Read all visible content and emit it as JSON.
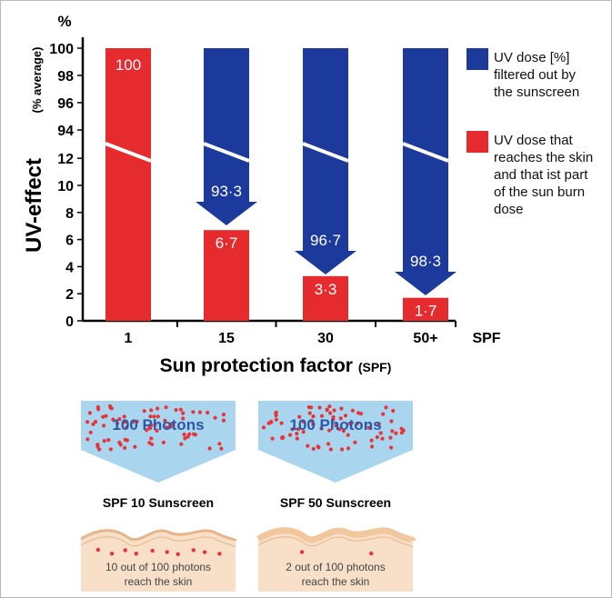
{
  "chart_data": {
    "type": "bar",
    "title": "",
    "xlabel": "Sun protection factor",
    "xlabel_suffix": "(SPF)",
    "ylabel": "UV-effect",
    "ylabel_suffix": "(% average)",
    "y_unit": "%",
    "x_unit": "SPF",
    "categories": [
      "1",
      "15",
      "30",
      "50+"
    ],
    "y_ticks_lower": [
      "0",
      "2",
      "4",
      "6",
      "8",
      "10",
      "12"
    ],
    "y_ticks_upper": [
      "94",
      "96",
      "98",
      "100"
    ],
    "axis_break": true,
    "ylim": [
      0,
      100
    ],
    "series": [
      {
        "name": "UV dose [%] filtered out by the sunscreen",
        "color": "#1c3a9b",
        "values": [
          0,
          93.3,
          96.7,
          98.3
        ],
        "labels": [
          "",
          "93·3",
          "96·7",
          "98·3"
        ]
      },
      {
        "name": "UV dose that reaches the skin and that ist part of the sun burn dose",
        "color": "#e52b2e",
        "values": [
          100,
          6.7,
          3.3,
          1.7
        ],
        "labels": [
          "100",
          "6·7",
          "3·3",
          "1·7"
        ]
      }
    ],
    "legend": {
      "position": "right",
      "items": [
        {
          "lines": [
            "UV dose [%]",
            "filtered out by",
            "the sunscreen"
          ],
          "color": "#1c3a9b"
        },
        {
          "lines": [
            "UV dose that",
            "reaches the skin",
            "and that ist part",
            "of the sun burn",
            "dose"
          ],
          "color": "#e52b2e"
        }
      ]
    }
  },
  "illustration": {
    "funnel_label": "100 Photons",
    "panels": [
      {
        "title": "SPF 10 Sunscreen",
        "caption_lines": [
          "10 out of 100 photons",
          "reach the skin"
        ],
        "photons_reaching": 10
      },
      {
        "title": "SPF 50 Sunscreen",
        "caption_lines": [
          "2 out of 100 photons",
          "reach the skin"
        ],
        "photons_reaching": 2
      }
    ],
    "colors": {
      "funnel": "#a9d6ee",
      "funnel_text": "#2c57a8",
      "photon": "#e8333a",
      "skin": "#f7e0c7",
      "skin_line": "#e8b58a",
      "sunscreen": "#f2c79e"
    }
  }
}
